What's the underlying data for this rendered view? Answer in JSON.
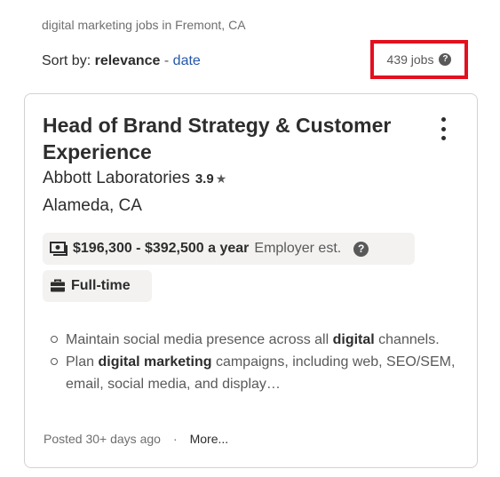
{
  "search": {
    "query_text": "digital marketing jobs in Fremont, CA",
    "sort_label": "Sort by:",
    "sort_active": "relevance",
    "sort_separator": "-",
    "sort_alt": "date",
    "job_count": "439 jobs",
    "help_glyph": "?"
  },
  "job": {
    "title": "Head of Brand Strategy & Customer Experience",
    "company": "Abbott Laboratories",
    "rating": "3.9",
    "rating_star": "★",
    "location": "Alameda, CA",
    "salary": "$196,300 - $392,500 a year",
    "salary_note": "Employer est.",
    "salary_help": "?",
    "job_type": "Full-time",
    "snippets": [
      {
        "pre": "Maintain social media presence across all ",
        "bold": "digital",
        "post": " channels."
      },
      {
        "pre": "Plan ",
        "bold": "digital marketing",
        "post": " campaigns, including web, SEO/SEM, email, social media, and display…"
      }
    ],
    "posted": "Posted 30+ days ago",
    "meta_separator": "·",
    "more_label": "More..."
  },
  "colors": {
    "highlight_border": "#e3101f",
    "link": "#2557a7",
    "chip_bg": "#f3f2f1"
  },
  "icons": [
    "help-circle-icon",
    "kebab-menu-icon",
    "star-icon",
    "money-icon",
    "briefcase-icon",
    "bullet-icon"
  ]
}
